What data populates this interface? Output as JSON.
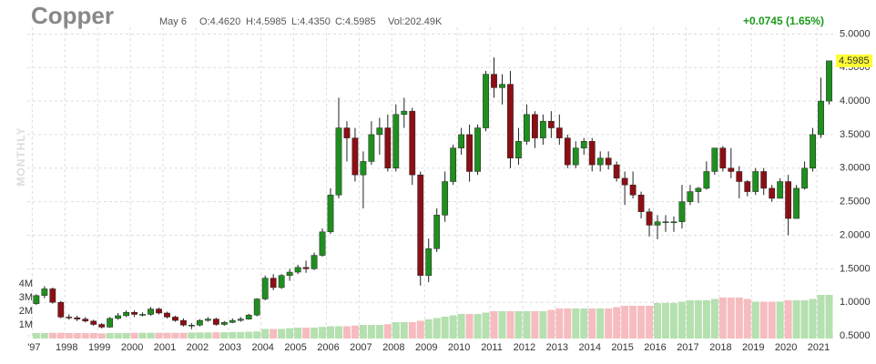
{
  "chart_data": {
    "type": "candlestick",
    "title": "Copper",
    "info": {
      "date": "May 6",
      "open": "O:4.4620",
      "high": "H:4.5985",
      "low": "L:4.4350",
      "close": "C:4.5985",
      "volume": "Vol:202.49K",
      "change": "+0.0745 (1.65%)",
      "interval": "MONTHLY",
      "last_price": "4.5985"
    },
    "x": [
      1997,
      1997.25,
      1997.5,
      1997.75,
      1998,
      1998.25,
      1998.5,
      1998.75,
      1999,
      1999.25,
      1999.5,
      1999.75,
      2000,
      2000.25,
      2000.5,
      2000.75,
      2001,
      2001.25,
      2001.5,
      2001.75,
      2002,
      2002.25,
      2002.5,
      2002.75,
      2003,
      2003.25,
      2003.5,
      2003.75,
      2004,
      2004.25,
      2004.5,
      2004.75,
      2005,
      2005.25,
      2005.5,
      2005.75,
      2006,
      2006.25,
      2006.5,
      2006.75,
      2007,
      2007.25,
      2007.5,
      2007.75,
      2008,
      2008.25,
      2008.5,
      2008.75,
      2009,
      2009.25,
      2009.5,
      2009.75,
      2010,
      2010.25,
      2010.5,
      2010.75,
      2011,
      2011.25,
      2011.5,
      2011.75,
      2012,
      2012.25,
      2012.5,
      2012.75,
      2013,
      2013.25,
      2013.5,
      2013.75,
      2014,
      2014.25,
      2014.5,
      2014.75,
      2015,
      2015.25,
      2015.5,
      2015.75,
      2016,
      2016.25,
      2016.5,
      2016.75,
      2017,
      2017.25,
      2017.5,
      2017.75,
      2018,
      2018.25,
      2018.5,
      2018.75,
      2019,
      2019.25,
      2019.5,
      2019.75,
      2020,
      2020.25,
      2020.5,
      2020.75,
      2021,
      2021.25
    ],
    "open": [
      0.98,
      1.1,
      1.2,
      1.0,
      0.78,
      0.77,
      0.75,
      0.72,
      0.67,
      0.63,
      0.76,
      0.8,
      0.85,
      0.82,
      0.82,
      0.9,
      0.84,
      0.78,
      0.73,
      0.66,
      0.66,
      0.73,
      0.75,
      0.67,
      0.7,
      0.73,
      0.75,
      0.81,
      1.05,
      1.36,
      1.22,
      1.4,
      1.45,
      1.52,
      1.5,
      1.7,
      2.05,
      2.6,
      3.6,
      3.45,
      2.9,
      3.1,
      3.5,
      3.6,
      3.0,
      3.8,
      3.85,
      2.9,
      1.4,
      1.8,
      2.3,
      2.8,
      3.3,
      3.5,
      2.95,
      3.6,
      4.4,
      4.2,
      4.25,
      3.15,
      3.4,
      3.8,
      3.45,
      3.7,
      3.6,
      3.45,
      3.05,
      3.3,
      3.4,
      3.05,
      3.15,
      3.05,
      2.85,
      2.75,
      2.6,
      2.35,
      2.15,
      2.2,
      2.2,
      2.2,
      2.5,
      2.65,
      2.7,
      2.95,
      3.3,
      3.0,
      2.95,
      2.8,
      2.65,
      2.95,
      2.7,
      2.55,
      2.8,
      2.25,
      2.7,
      3.0,
      3.5,
      4.0
    ],
    "high": [
      1.12,
      1.24,
      1.22,
      1.02,
      0.82,
      0.8,
      0.78,
      0.74,
      0.69,
      0.78,
      0.84,
      0.88,
      0.88,
      0.85,
      0.93,
      0.92,
      0.86,
      0.8,
      0.76,
      0.69,
      0.75,
      0.78,
      0.77,
      0.72,
      0.76,
      0.78,
      0.83,
      1.06,
      1.4,
      1.42,
      1.42,
      1.5,
      1.56,
      1.62,
      1.74,
      2.1,
      2.7,
      4.05,
      3.7,
      3.6,
      3.25,
      3.7,
      3.75,
      3.8,
      3.95,
      4.05,
      3.9,
      2.95,
      1.95,
      2.4,
      2.95,
      3.35,
      3.6,
      3.65,
      3.65,
      4.45,
      4.65,
      4.4,
      4.45,
      3.6,
      3.95,
      3.85,
      3.8,
      3.85,
      3.8,
      3.5,
      3.4,
      3.45,
      3.45,
      3.25,
      3.25,
      3.1,
      2.95,
      2.95,
      2.65,
      2.4,
      2.3,
      2.3,
      2.28,
      2.75,
      2.75,
      2.72,
      3.1,
      3.3,
      3.33,
      3.3,
      3.03,
      2.82,
      3.0,
      3.0,
      2.75,
      2.85,
      2.9,
      2.75,
      3.1,
      3.6,
      4.35,
      4.6
    ],
    "low": [
      0.96,
      1.06,
      0.98,
      0.76,
      0.74,
      0.72,
      0.7,
      0.65,
      0.61,
      0.62,
      0.74,
      0.78,
      0.78,
      0.79,
      0.8,
      0.82,
      0.76,
      0.71,
      0.64,
      0.6,
      0.64,
      0.71,
      0.65,
      0.65,
      0.69,
      0.71,
      0.74,
      0.79,
      1.03,
      1.18,
      1.2,
      1.32,
      1.42,
      1.44,
      1.48,
      1.68,
      2.02,
      2.55,
      3.1,
      2.8,
      2.4,
      3.05,
      3.2,
      2.95,
      2.95,
      3.6,
      2.75,
      1.25,
      1.3,
      1.75,
      2.2,
      2.75,
      3.2,
      2.8,
      2.9,
      3.55,
      4.05,
      3.95,
      3.0,
      3.05,
      3.35,
      3.3,
      3.35,
      3.45,
      3.35,
      3.0,
      3.0,
      3.2,
      2.95,
      2.95,
      2.98,
      2.8,
      2.45,
      2.55,
      2.25,
      1.98,
      1.94,
      2.05,
      2.05,
      2.1,
      2.45,
      2.48,
      2.68,
      2.9,
      2.95,
      2.85,
      2.55,
      2.58,
      2.6,
      2.6,
      2.5,
      2.55,
      2.0,
      2.25,
      2.68,
      2.95,
      3.45,
      3.95
    ],
    "close": [
      1.1,
      1.2,
      1.0,
      0.78,
      0.77,
      0.75,
      0.72,
      0.67,
      0.63,
      0.76,
      0.8,
      0.85,
      0.82,
      0.82,
      0.9,
      0.84,
      0.78,
      0.73,
      0.66,
      0.66,
      0.73,
      0.75,
      0.67,
      0.7,
      0.73,
      0.75,
      0.81,
      1.05,
      1.36,
      1.22,
      1.4,
      1.45,
      1.52,
      1.5,
      1.7,
      2.05,
      2.6,
      3.6,
      3.45,
      2.9,
      3.1,
      3.5,
      3.6,
      3.0,
      3.8,
      3.85,
      2.9,
      1.4,
      1.8,
      2.3,
      2.8,
      3.3,
      3.5,
      2.95,
      3.6,
      4.4,
      4.2,
      4.25,
      3.15,
      3.4,
      3.8,
      3.45,
      3.7,
      3.6,
      3.45,
      3.05,
      3.3,
      3.4,
      3.05,
      3.15,
      3.05,
      2.85,
      2.75,
      2.6,
      2.35,
      2.15,
      2.2,
      2.2,
      2.2,
      2.5,
      2.65,
      2.7,
      2.95,
      3.3,
      3.0,
      2.95,
      2.8,
      2.65,
      2.95,
      2.7,
      2.55,
      2.8,
      2.25,
      2.7,
      3.0,
      3.5,
      4.0,
      4.6
    ],
    "volume": [
      400000,
      400000,
      420000,
      420000,
      400000,
      400000,
      400000,
      400000,
      380000,
      400000,
      400000,
      400000,
      420000,
      420000,
      420000,
      420000,
      420000,
      420000,
      420000,
      440000,
      450000,
      450000,
      460000,
      460000,
      480000,
      480000,
      500000,
      520000,
      700000,
      700000,
      700000,
      750000,
      800000,
      800000,
      800000,
      850000,
      900000,
      900000,
      900000,
      950000,
      1000000,
      1000000,
      1000000,
      1050000,
      1200000,
      1200000,
      1200000,
      1300000,
      1400000,
      1500000,
      1600000,
      1700000,
      1800000,
      1800000,
      1800000,
      1900000,
      2000000,
      2000000,
      2000000,
      2000000,
      2000000,
      2000000,
      2000000,
      2100000,
      2200000,
      2200000,
      2200000,
      2200000,
      2200000,
      2200000,
      2200000,
      2300000,
      2400000,
      2400000,
      2400000,
      2400000,
      2600000,
      2600000,
      2600000,
      2700000,
      2800000,
      2800000,
      2800000,
      2900000,
      3000000,
      3000000,
      3000000,
      2900000,
      2700000,
      2700000,
      2700000,
      2700000,
      2800000,
      2800000,
      2800000,
      2900000,
      3200000,
      3200000
    ],
    "up_color": "#1f8f1f",
    "down_color": "#8b0f14",
    "volume_up_color": "#b5e0b0",
    "volume_down_color": "#f6bcc0",
    "xlim": [
      1996.85,
      2021.5
    ],
    "xticks": [
      {
        "value": 1997,
        "label": "'97"
      },
      1998,
      1999,
      2000,
      2001,
      2002,
      2003,
      2004,
      2005,
      2006,
      2007,
      2008,
      2009,
      2010,
      2011,
      2012,
      2013,
      2014,
      2015,
      2016,
      2017,
      2018,
      2019,
      2020,
      2021
    ],
    "ylim": [
      0.46,
      5.1
    ],
    "yticks": [
      {
        "value": 0.5,
        "label": "0.5000"
      },
      {
        "value": 1,
        "label": "1.0000"
      },
      {
        "value": 1.5,
        "label": "1.5000"
      },
      {
        "value": 2,
        "label": "2.0000"
      },
      {
        "value": 2.5,
        "label": "2.5000"
      },
      {
        "value": 3,
        "label": "3.0000"
      },
      {
        "value": 3.5,
        "label": "3.5000"
      },
      {
        "value": 4,
        "label": "4.0000"
      },
      {
        "value": 4.5,
        "label": "4.5000"
      },
      {
        "value": 5,
        "label": "5.0000"
      }
    ],
    "y2lim": [
      0,
      22800000
    ],
    "y2ticks": [
      {
        "value": 1000000,
        "label": "1M"
      },
      {
        "value": 2000000,
        "label": "2M"
      },
      {
        "value": 3000000,
        "label": "3M"
      },
      {
        "value": 4000000,
        "label": "4M"
      }
    ],
    "grid": true
  }
}
